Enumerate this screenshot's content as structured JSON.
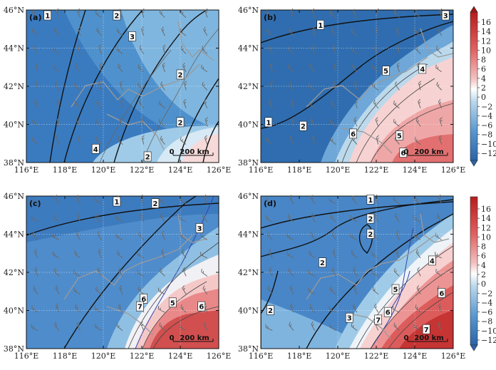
{
  "x_ticks": [
    "116°E",
    "118°E",
    "120°E",
    "122°E",
    "124°E",
    "126°E"
  ],
  "y_ticks": [
    "46°N",
    "44°N",
    "42°N",
    "40°N",
    "38°N"
  ],
  "colorbar_ticks": [
    "16",
    "14",
    "12",
    "10",
    "8",
    "6",
    "4",
    "2",
    "0",
    "−2",
    "−4",
    "−6",
    "−8",
    "−10",
    "−12"
  ],
  "panels": [
    {
      "label": "(a)",
      "scale_zero": "0",
      "scale_text": "200 km",
      "contour_labels": [
        {
          "text": "1",
          "lon": 117.1,
          "lat": 45.7
        },
        {
          "text": "2",
          "lon": 120.7,
          "lat": 45.7
        },
        {
          "text": "3",
          "lon": 121.5,
          "lat": 44.6
        },
        {
          "text": "2",
          "lon": 124.0,
          "lat": 42.6
        },
        {
          "text": "2",
          "lon": 124.0,
          "lat": 40.1
        },
        {
          "text": "4",
          "lon": 119.6,
          "lat": 38.7
        },
        {
          "text": "2",
          "lon": 122.3,
          "lat": 38.3
        }
      ]
    },
    {
      "label": "(b)",
      "scale_zero": "0",
      "scale_text": "200 km",
      "contour_labels": [
        {
          "text": "3",
          "lon": 125.6,
          "lat": 45.7
        },
        {
          "text": "1",
          "lon": 119.1,
          "lat": 45.2
        },
        {
          "text": "5",
          "lon": 122.5,
          "lat": 42.8
        },
        {
          "text": "4",
          "lon": 124.4,
          "lat": 42.9
        },
        {
          "text": "1",
          "lon": 116.4,
          "lat": 40.1
        },
        {
          "text": "2",
          "lon": 118.2,
          "lat": 39.9
        },
        {
          "text": "6",
          "lon": 120.8,
          "lat": 39.5
        },
        {
          "text": "5",
          "lon": 123.2,
          "lat": 39.4
        },
        {
          "text": "6",
          "lon": 123.4,
          "lat": 38.5
        }
      ]
    },
    {
      "label": "(c)",
      "scale_zero": "0",
      "scale_text": "200 km",
      "contour_labels": [
        {
          "text": "1",
          "lon": 120.7,
          "lat": 45.7
        },
        {
          "text": "2",
          "lon": 122.7,
          "lat": 45.6
        },
        {
          "text": "3",
          "lon": 125.0,
          "lat": 44.3
        },
        {
          "text": "6",
          "lon": 122.1,
          "lat": 40.6
        },
        {
          "text": "7",
          "lon": 121.9,
          "lat": 40.2
        },
        {
          "text": "5",
          "lon": 123.6,
          "lat": 40.4
        },
        {
          "text": "6",
          "lon": 125.1,
          "lat": 40.2
        }
      ]
    },
    {
      "label": "(d)",
      "scale_zero": "0",
      "scale_text": "200 km",
      "contour_labels": [
        {
          "text": "1",
          "lon": 121.7,
          "lat": 45.8
        },
        {
          "text": "2",
          "lon": 121.7,
          "lat": 44.8
        },
        {
          "text": "2",
          "lon": 121.7,
          "lat": 44.0
        },
        {
          "text": "2",
          "lon": 119.2,
          "lat": 42.5
        },
        {
          "text": "4",
          "lon": 124.9,
          "lat": 42.6
        },
        {
          "text": "5",
          "lon": 123.0,
          "lat": 41.1
        },
        {
          "text": "6",
          "lon": 125.4,
          "lat": 40.9
        },
        {
          "text": "2",
          "lon": 116.5,
          "lat": 40.0
        },
        {
          "text": "3",
          "lon": 120.6,
          "lat": 39.6
        },
        {
          "text": "6",
          "lon": 122.6,
          "lat": 39.9
        },
        {
          "text": "7",
          "lon": 122.1,
          "lat": 39.5
        },
        {
          "text": "7",
          "lon": 124.6,
          "lat": 39.0
        }
      ]
    }
  ],
  "colors": {
    "deep_blue": "#2f6db0",
    "mid_blue": "#4e8fcb",
    "light_blue": "#9ecae1",
    "pale_blue": "#cfe3f0",
    "white": "#ffffff",
    "pale_red": "#f7d2d2",
    "light_red": "#f0a0a0",
    "mid_red": "#e06666",
    "deep_red": "#c93a3a",
    "dark_red": "#b21f1f"
  }
}
